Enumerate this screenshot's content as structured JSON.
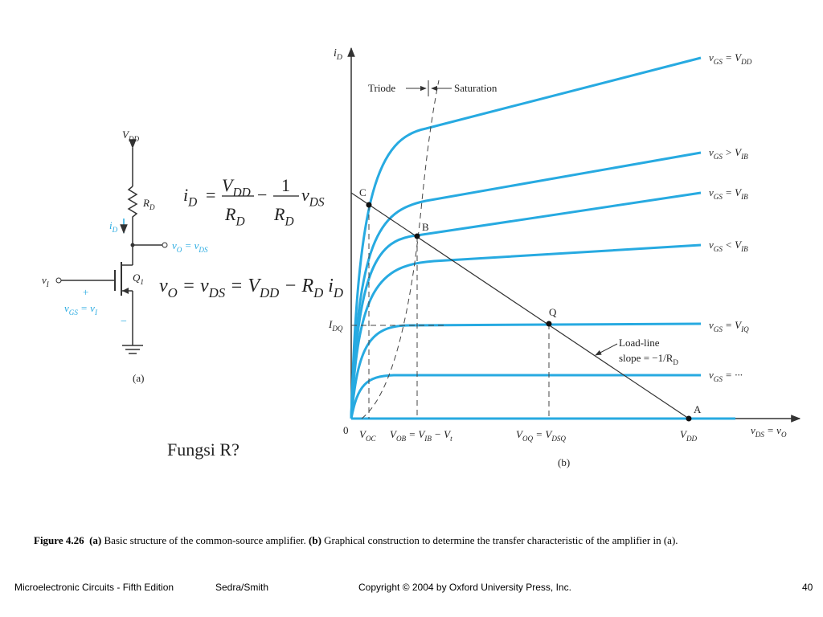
{
  "circuit": {
    "vdd": [
      "V",
      "DD"
    ],
    "rd": [
      "R",
      "D"
    ],
    "id": [
      "i",
      "D"
    ],
    "vout": [
      "v",
      "O",
      " = v",
      "DS"
    ],
    "vin": [
      "v",
      "I"
    ],
    "plus": "+",
    "vgs": [
      "v",
      "GS",
      " = v",
      "I"
    ],
    "minus": "−",
    "q1": [
      "Q",
      "1"
    ],
    "caption": "(a)"
  },
  "equations": {
    "eq1": {
      "lhs": [
        "i",
        "D"
      ],
      "eq": "=",
      "num1": [
        "V",
        "DD"
      ],
      "den1": [
        "R",
        "D"
      ],
      "op": "−",
      "num2": "1",
      "den2": [
        "R",
        "D"
      ],
      "rhs": [
        "v",
        "DS"
      ]
    },
    "eq2": [
      "v",
      "O",
      " = v",
      "DS",
      " = V",
      "DD",
      " − R",
      "D",
      " i",
      "D"
    ]
  },
  "graph": {
    "y_axis": [
      "i",
      "D"
    ],
    "x_axis": [
      "v",
      "DS",
      " = v",
      "O"
    ],
    "triode": "Triode",
    "saturation": "Saturation",
    "curves": [
      [
        "v",
        "GS",
        " = V",
        "DD"
      ],
      [
        "v",
        "GS",
        " > V",
        "IB"
      ],
      [
        "v",
        "GS",
        " = V",
        "IB"
      ],
      [
        "v",
        "GS",
        " < V",
        "IB"
      ],
      [
        "v",
        "GS",
        " = V",
        "IQ"
      ],
      [
        "v",
        "GS",
        " = ···"
      ]
    ],
    "points": {
      "c": "C",
      "b": "B",
      "q": "Q",
      "a": "A"
    },
    "idq": [
      "I",
      "DQ"
    ],
    "load_line": "Load-line",
    "slope": [
      "slope = −1/R",
      "D"
    ],
    "origin": "0",
    "x_labels": [
      [
        "V",
        "OC"
      ],
      [
        "V",
        "OB",
        " = V",
        "IB",
        " − V",
        "t"
      ],
      [
        "V",
        "OQ",
        " = V",
        "DSQ"
      ],
      [
        "V",
        "DD"
      ]
    ],
    "caption": "(b)"
  },
  "question": "Fungsi R?",
  "figure_caption": {
    "label": "Figure  4.26",
    "a": "(a)",
    "a_text": " Basic structure of the common-source amplifier. ",
    "b": "(b)",
    "b_text": " Graphical construction to determine the transfer characteristic of the amplifier in (a)."
  },
  "footer": {
    "book": "Microelectronic Circuits - Fifth Edition",
    "authors": "Sedra/Smith",
    "copyright": "Copyright © 2004 by Oxford University Press, Inc.",
    "page": "40"
  }
}
